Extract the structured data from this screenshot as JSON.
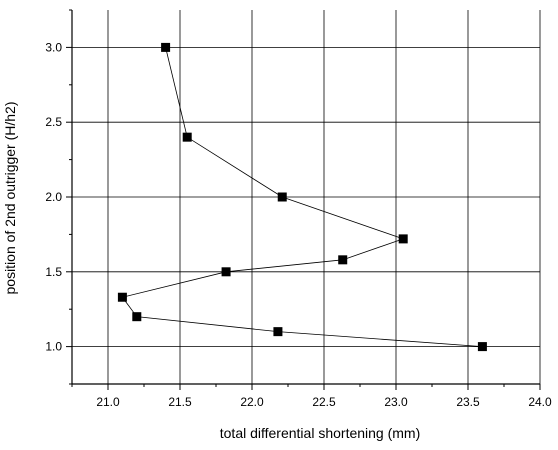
{
  "chart_data": {
    "type": "scatter",
    "title": "",
    "xlabel": "total differential shortening (mm)",
    "ylabel": "position of 2nd outrigger (H/h2)",
    "xlim": [
      20.75,
      24.0
    ],
    "ylim": [
      0.75,
      3.25
    ],
    "x_ticks": [
      "21.0",
      "21.5",
      "22.0",
      "22.5",
      "23.0",
      "23.5",
      "24.0"
    ],
    "y_ticks": [
      "1.0",
      "1.5",
      "2.0",
      "2.5",
      "3.0"
    ],
    "grid": true,
    "legend": "none",
    "series": [
      {
        "marker": "square",
        "connected": true,
        "points": [
          {
            "x": 21.4,
            "y": 3.0
          },
          {
            "x": 21.55,
            "y": 2.4
          },
          {
            "x": 22.21,
            "y": 2.0
          },
          {
            "x": 23.05,
            "y": 1.72
          },
          {
            "x": 22.63,
            "y": 1.58
          },
          {
            "x": 21.82,
            "y": 1.5
          },
          {
            "x": 21.1,
            "y": 1.33
          },
          {
            "x": 21.2,
            "y": 1.2
          },
          {
            "x": 22.18,
            "y": 1.1
          },
          {
            "x": 23.6,
            "y": 1.0
          }
        ]
      }
    ],
    "colors": {
      "line": "#000000",
      "marker": "#000000",
      "grid": "#000000",
      "axis": "#000000"
    }
  }
}
